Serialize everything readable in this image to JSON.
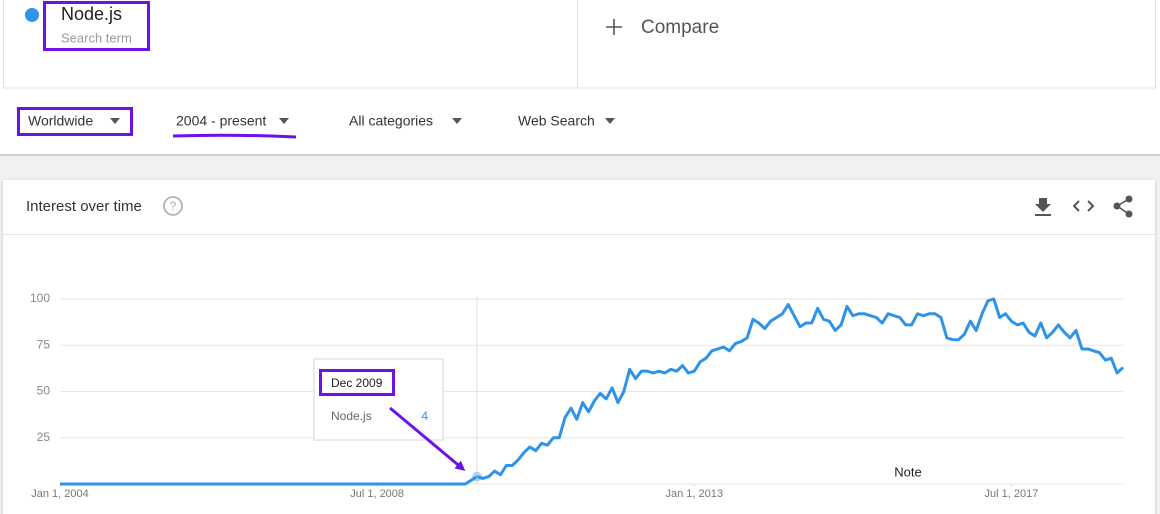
{
  "header": {
    "term": "Node.js",
    "term_caption": "Search term",
    "compare": "Compare"
  },
  "filters": [
    "Worldwide",
    "2004 - present",
    "All categories",
    "Web Search"
  ],
  "card": {
    "title": "Interest over time"
  },
  "chart_data": {
    "type": "line",
    "x": [
      "2004-01",
      "2005-01",
      "2006-01",
      "2007-01",
      "2008-01",
      "2009-01",
      "2009-10",
      "2009-11",
      "2009-12",
      "2010-01",
      "2010-02",
      "2010-03",
      "2010-04",
      "2010-05",
      "2010-06",
      "2010-07",
      "2010-08",
      "2010-09",
      "2010-10",
      "2010-11",
      "2010-12",
      "2011-01",
      "2011-02",
      "2011-03",
      "2011-04",
      "2011-05",
      "2011-06",
      "2011-07",
      "2011-08",
      "2011-09",
      "2011-10",
      "2011-11",
      "2011-12",
      "2012-01",
      "2012-02",
      "2012-03",
      "2012-04",
      "2012-05",
      "2012-06",
      "2012-07",
      "2012-08",
      "2012-09",
      "2012-10",
      "2012-11",
      "2012-12",
      "2013-01",
      "2013-02",
      "2013-03",
      "2013-04",
      "2013-05",
      "2013-06",
      "2013-07",
      "2013-08",
      "2013-09",
      "2013-10",
      "2013-11",
      "2013-12",
      "2014-01",
      "2014-02",
      "2014-03",
      "2014-04",
      "2014-05",
      "2014-06",
      "2014-07",
      "2014-08",
      "2014-09",
      "2014-10",
      "2014-11",
      "2014-12",
      "2015-01",
      "2015-02",
      "2015-03",
      "2015-04",
      "2015-05",
      "2015-06",
      "2015-07",
      "2015-08",
      "2015-09",
      "2015-10",
      "2015-11",
      "2015-12",
      "2016-01",
      "2016-02",
      "2016-03",
      "2016-04",
      "2016-05",
      "2016-06",
      "2016-07",
      "2016-08",
      "2016-09",
      "2016-10",
      "2016-11",
      "2016-12",
      "2017-01",
      "2017-02",
      "2017-03",
      "2017-04",
      "2017-05",
      "2017-06",
      "2017-07",
      "2017-08",
      "2017-09",
      "2017-10",
      "2017-11",
      "2017-12",
      "2018-01",
      "2018-02",
      "2018-03",
      "2018-04",
      "2018-05",
      "2018-06",
      "2018-07",
      "2018-08",
      "2018-09",
      "2018-10",
      "2018-11",
      "2018-12",
      "2019-01",
      "2019-02"
    ],
    "series": [
      {
        "name": "Node.js",
        "color": "#2f93e8",
        "values": [
          0,
          0,
          0,
          0,
          0,
          0,
          0,
          2,
          4,
          3,
          4,
          7,
          5,
          10,
          10,
          13,
          17,
          20,
          18,
          22,
          21,
          25,
          25,
          36,
          41,
          35,
          44,
          39,
          45,
          49,
          46,
          52,
          44,
          50,
          62,
          57,
          61,
          61,
          60,
          61,
          60,
          62,
          61,
          64,
          60,
          61,
          66,
          68,
          72,
          73,
          74,
          72,
          76,
          77,
          79,
          89,
          87,
          84,
          88,
          90,
          92,
          97,
          91,
          85,
          87,
          87,
          95,
          89,
          88,
          83,
          86,
          96,
          91,
          92,
          92,
          91,
          90,
          87,
          92,
          91,
          90,
          86,
          86,
          92,
          91,
          92,
          92,
          90,
          79,
          78,
          78,
          81,
          88,
          83,
          92,
          99,
          100,
          90,
          92,
          88,
          86,
          87,
          82,
          80,
          87,
          79,
          82,
          86,
          82,
          79,
          83,
          73,
          73,
          72,
          71,
          67,
          68,
          60,
          63
        ]
      }
    ],
    "xlim": [
      "2004-01-01",
      "2019-02-01"
    ],
    "xticks": [
      {
        "value": "2004-01-01",
        "label": "Jan 1, 2004"
      },
      {
        "value": "2008-07-01",
        "label": "Jul 1, 2008"
      },
      {
        "value": "2013-01-01",
        "label": "Jan 1, 2013"
      },
      {
        "value": "2017-07-01",
        "label": "Jul 1, 2017"
      }
    ],
    "ylim": [
      0,
      100
    ],
    "yticks": [
      25,
      50,
      75,
      100
    ],
    "grid": true,
    "tooltip": {
      "title": "Dec 2009"
    },
    "annotation": "Note"
  }
}
